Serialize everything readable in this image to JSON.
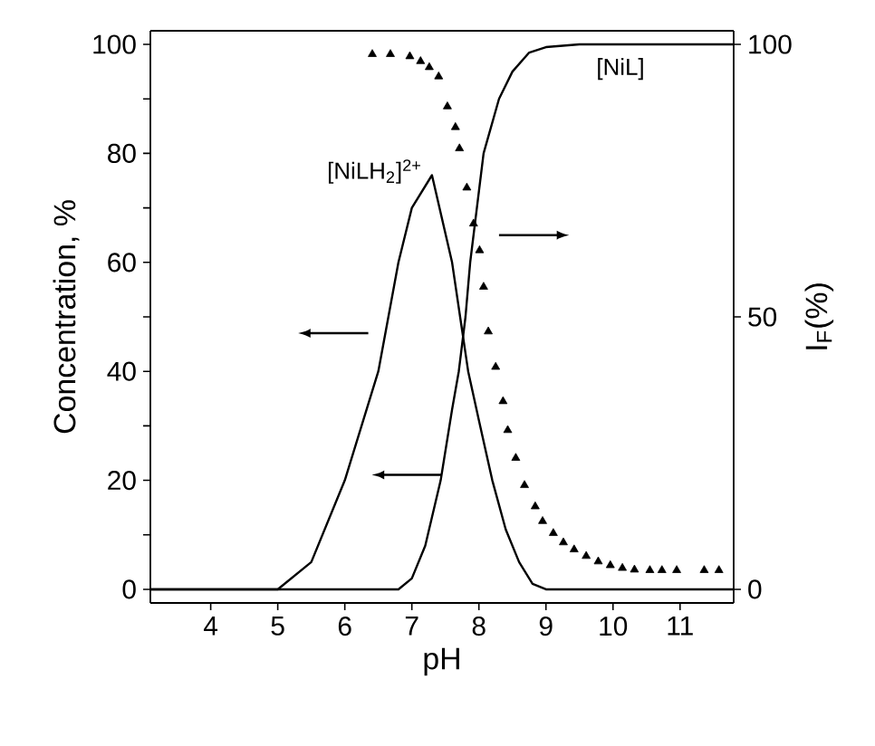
{
  "chart_data": {
    "type": "line",
    "xlabel": "pH",
    "ylabel": "Concentration, %",
    "y2label": "I$_{F}$(%)",
    "xlim": [
      3.1,
      11.8
    ],
    "xticks": [
      4,
      5,
      6,
      7,
      8,
      9,
      10,
      11
    ],
    "ylim": [
      -2.5,
      102.5
    ],
    "yticks": [
      0,
      {
        "value": 10,
        "label": null
      },
      20,
      {
        "value": 30,
        "label": null
      },
      40,
      {
        "value": 50,
        "label": null
      },
      60,
      {
        "value": 70,
        "label": null
      },
      80,
      {
        "value": 90,
        "label": null
      },
      100
    ],
    "y2lim": [
      -2.5,
      102.5
    ],
    "y2ticks": [
      0,
      50,
      100
    ],
    "grid": false,
    "series": [
      {
        "name": "[NiLH$_{2}$]$^{2+}$",
        "color": "#000000",
        "marker": "none",
        "x": [
          3.1,
          4,
          5,
          5.5,
          6,
          6.5,
          6.8,
          7.0,
          7.3,
          7.6,
          7.84,
          8.0,
          8.2,
          8.4,
          8.6,
          8.8,
          9.0,
          10,
          11.8
        ],
        "values": [
          0,
          0,
          0,
          5,
          20,
          40,
          60,
          70,
          76,
          60,
          40,
          31,
          20,
          11,
          5,
          1,
          0,
          0,
          0
        ]
      },
      {
        "name": "[NiL]",
        "color": "#000000",
        "marker": "none",
        "x": [
          3.1,
          5,
          6.5,
          6.8,
          7.0,
          7.2,
          7.43,
          7.6,
          7.7,
          7.8,
          7.87,
          8.07,
          8.3,
          8.5,
          8.75,
          9.0,
          9.5,
          11.8
        ],
        "values": [
          0,
          0,
          0,
          0,
          2,
          8,
          20,
          33,
          40,
          50,
          60,
          80,
          90,
          95,
          98.5,
          99.5,
          100,
          100
        ]
      },
      {
        "type": "scatter",
        "axis": "y2",
        "color": "#000000",
        "marker": "triangle",
        "x": [
          6.41,
          6.68,
          6.97,
          7.13,
          7.26,
          7.4,
          7.53,
          7.65,
          7.71,
          7.82,
          7.92,
          8.01,
          8.07,
          8.14,
          8.25,
          8.36,
          8.43,
          8.55,
          8.68,
          8.84,
          8.95,
          9.11,
          9.26,
          9.42,
          9.6,
          9.78,
          9.96,
          10.14,
          10.32,
          10.55,
          10.73,
          10.95,
          11.36,
          11.58
        ],
        "values": [
          98.2,
          98.2,
          97.8,
          96.9,
          95.8,
          94.1,
          88.6,
          84.8,
          80.9,
          73.7,
          67.1,
          62.2,
          55.5,
          47.3,
          40.8,
          34.5,
          29.2,
          24.1,
          19.1,
          15.2,
          12.5,
          10.3,
          8.6,
          7.3,
          6.1,
          5.1,
          4.4,
          3.9,
          3.6,
          3.5,
          3.5,
          3.5,
          3.5,
          3.5
        ]
      }
    ]
  }
}
